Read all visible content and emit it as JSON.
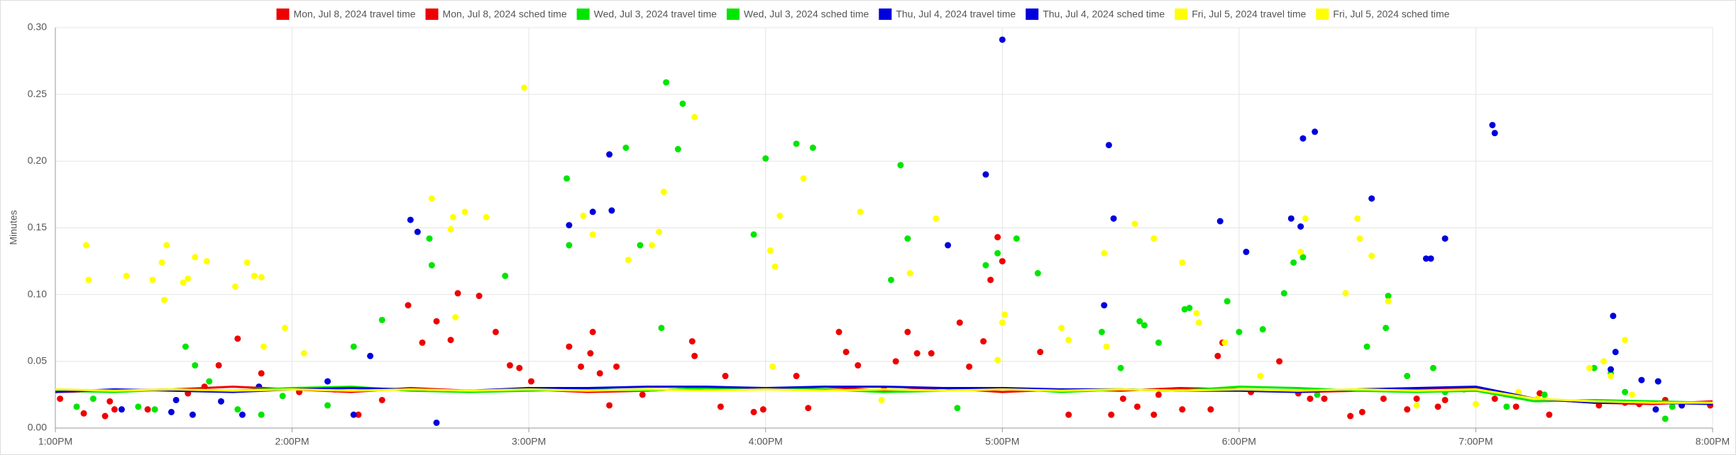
{
  "chart_data": {
    "type": "scatter",
    "y_label": "Minutes",
    "xlim": [
      13,
      20
    ],
    "xticks": [
      {
        "value": 13,
        "label": "1:00PM"
      },
      {
        "value": 14,
        "label": "2:00PM"
      },
      {
        "value": 15,
        "label": "3:00PM"
      },
      {
        "value": 16,
        "label": "4:00PM"
      },
      {
        "value": 17,
        "label": "5:00PM"
      },
      {
        "value": 18,
        "label": "6:00PM"
      },
      {
        "value": 19,
        "label": "7:00PM"
      },
      {
        "value": 20,
        "label": "8:00PM"
      }
    ],
    "ylim": [
      0,
      0.3
    ],
    "yticks": [
      {
        "value": 0,
        "label": "0.00"
      },
      0.05,
      {
        "value": 0.1,
        "label": "0.10"
      },
      0.15,
      {
        "value": 0.2,
        "label": "0.20"
      },
      0.25,
      {
        "value": 0.3,
        "label": "0.30"
      }
    ],
    "grid": true,
    "legend": "top",
    "series": [
      {
        "name": "Mon, Jul 8, 2024 travel time",
        "type": "scatter",
        "color": "#ee0000",
        "x": [
          13.02,
          13.12,
          13.21,
          13.23,
          13.25,
          13.39,
          13.56,
          13.63,
          13.69,
          13.77,
          13.87,
          14.03,
          14.18,
          14.28,
          14.38,
          14.49,
          14.55,
          14.61,
          14.67,
          14.7,
          14.79,
          14.86,
          14.92,
          14.96,
          15.01,
          15.17,
          15.22,
          15.26,
          15.27,
          15.3,
          15.34,
          15.37,
          15.48,
          15.69,
          15.7,
          15.81,
          15.83,
          15.95,
          15.99,
          16.13,
          16.18,
          16.31,
          16.34,
          16.39,
          16.5,
          16.55,
          16.6,
          16.64,
          16.7,
          16.82,
          16.86,
          16.92,
          16.95,
          16.98,
          17.0,
          17.16,
          17.28,
          17.46,
          17.51,
          17.57,
          17.64,
          17.66,
          17.76,
          17.88,
          17.91,
          17.93,
          18.05,
          18.17,
          18.25,
          18.3,
          18.36,
          18.47,
          18.52,
          18.61,
          18.71,
          18.75,
          18.84,
          18.87,
          19.08,
          19.17,
          19.27,
          19.31,
          19.52,
          19.63,
          19.69,
          19.8,
          19.87,
          19.99
        ],
        "values": [
          0.022,
          0.011,
          0.009,
          0.02,
          0.014,
          0.014,
          0.026,
          0.031,
          0.047,
          0.067,
          0.041,
          0.027,
          0.029,
          0.01,
          0.021,
          0.092,
          0.064,
          0.08,
          0.066,
          0.101,
          0.099,
          0.072,
          0.047,
          0.045,
          0.035,
          0.061,
          0.046,
          0.056,
          0.072,
          0.041,
          0.017,
          0.046,
          0.025,
          0.065,
          0.054,
          0.016,
          0.039,
          0.012,
          0.014,
          0.039,
          0.015,
          0.072,
          0.057,
          0.047,
          0.029,
          0.05,
          0.072,
          0.056,
          0.056,
          0.079,
          0.046,
          0.065,
          0.111,
          0.143,
          0.125,
          0.057,
          0.01,
          0.01,
          0.022,
          0.016,
          0.01,
          0.025,
          0.014,
          0.014,
          0.054,
          0.064,
          0.027,
          0.05,
          0.026,
          0.022,
          0.022,
          0.009,
          0.012,
          0.022,
          0.014,
          0.022,
          0.016,
          0.021,
          0.022,
          0.016,
          0.026,
          0.01,
          0.017,
          0.019,
          0.018,
          0.021,
          0.017,
          0.017
        ]
      },
      {
        "name": "Mon, Jul 8, 2024 sched time",
        "type": "line",
        "color": "#ee0000",
        "x": [
          13,
          13.25,
          13.5,
          13.75,
          14,
          14.25,
          14.5,
          14.75,
          15,
          15.25,
          15.5,
          15.75,
          16,
          16.25,
          16.5,
          16.75,
          17,
          17.25,
          17.5,
          17.75,
          18,
          18.25,
          18.5,
          18.75,
          19,
          19.25,
          19.5,
          19.75,
          20
        ],
        "values": [
          0.027,
          0.028,
          0.029,
          0.031,
          0.029,
          0.027,
          0.03,
          0.028,
          0.029,
          0.027,
          0.028,
          0.03,
          0.029,
          0.031,
          0.028,
          0.03,
          0.027,
          0.029,
          0.028,
          0.03,
          0.029,
          0.027,
          0.028,
          0.029,
          0.03,
          0.022,
          0.019,
          0.018,
          0.02
        ]
      },
      {
        "name": "Wed, Jul 3, 2024 travel time",
        "type": "scatter",
        "color": "#00e600",
        "x": [
          13.09,
          13.16,
          13.35,
          13.42,
          13.55,
          13.59,
          13.65,
          13.77,
          13.87,
          13.96,
          14.15,
          14.26,
          14.38,
          14.58,
          14.59,
          14.9,
          15.16,
          15.17,
          15.41,
          15.47,
          15.56,
          15.58,
          15.63,
          15.65,
          15.95,
          16.0,
          16.13,
          16.2,
          16.53,
          16.57,
          16.6,
          16.81,
          16.93,
          16.98,
          17.06,
          17.15,
          17.42,
          17.5,
          17.58,
          17.6,
          17.66,
          17.77,
          17.79,
          17.95,
          18.0,
          18.1,
          18.19,
          18.23,
          18.27,
          18.33,
          18.54,
          18.62,
          18.63,
          18.71,
          18.82,
          18.87,
          18.95,
          19.13,
          19.29,
          19.5,
          19.57,
          19.63,
          19.77,
          19.8,
          19.83
        ],
        "values": [
          0.016,
          0.022,
          0.016,
          0.014,
          0.061,
          0.047,
          0.035,
          0.014,
          0.01,
          0.024,
          0.017,
          0.061,
          0.081,
          0.142,
          0.122,
          0.114,
          0.187,
          0.137,
          0.21,
          0.137,
          0.075,
          0.259,
          0.209,
          0.243,
          0.145,
          0.202,
          0.213,
          0.21,
          0.111,
          0.197,
          0.142,
          0.015,
          0.122,
          0.131,
          0.142,
          0.116,
          0.072,
          0.045,
          0.08,
          0.077,
          0.064,
          0.089,
          0.09,
          0.095,
          0.072,
          0.074,
          0.101,
          0.124,
          0.128,
          0.025,
          0.061,
          0.075,
          0.099,
          0.039,
          0.045,
          0.027,
          0.029,
          0.016,
          0.025,
          0.045,
          0.041,
          0.027,
          0.035,
          0.007,
          0.016
        ]
      },
      {
        "name": "Wed, Jul 3, 2024 sched time",
        "type": "line",
        "color": "#00e600",
        "x": [
          13,
          13.25,
          13.5,
          13.75,
          14,
          14.25,
          14.5,
          14.75,
          15,
          15.25,
          15.5,
          15.75,
          16,
          16.25,
          16.5,
          16.75,
          17,
          17.25,
          17.5,
          17.75,
          18,
          18.25,
          18.5,
          18.75,
          19,
          19.25,
          19.5,
          19.75,
          20
        ],
        "values": [
          0.028,
          0.027,
          0.029,
          0.028,
          0.03,
          0.031,
          0.028,
          0.027,
          0.028,
          0.029,
          0.028,
          0.03,
          0.029,
          0.029,
          0.027,
          0.028,
          0.03,
          0.027,
          0.029,
          0.028,
          0.031,
          0.03,
          0.028,
          0.027,
          0.028,
          0.02,
          0.021,
          0.02,
          0.019
        ]
      },
      {
        "name": "Thu, Jul 4, 2024 travel time",
        "type": "scatter",
        "color": "#0000dd",
        "x": [
          13.28,
          13.49,
          13.51,
          13.58,
          13.7,
          13.79,
          13.86,
          14.15,
          14.26,
          14.33,
          14.5,
          14.53,
          14.61,
          15.17,
          15.27,
          15.34,
          15.35,
          16.77,
          16.93,
          17.0,
          17.43,
          17.45,
          17.47,
          17.92,
          18.03,
          18.22,
          18.26,
          18.27,
          18.32,
          18.56,
          18.79,
          18.81,
          18.87,
          19.07,
          19.08,
          19.58,
          19.59,
          19.57,
          19.7,
          19.77,
          19.87,
          19.76
        ],
        "values": [
          0.014,
          0.012,
          0.021,
          0.01,
          0.02,
          0.01,
          0.031,
          0.035,
          0.01,
          0.054,
          0.156,
          0.147,
          0.004,
          0.152,
          0.162,
          0.205,
          0.163,
          0.137,
          0.19,
          0.291,
          0.092,
          0.212,
          0.157,
          0.155,
          0.132,
          0.157,
          0.151,
          0.217,
          0.222,
          0.172,
          0.127,
          0.127,
          0.142,
          0.227,
          0.221,
          0.084,
          0.057,
          0.044,
          0.036,
          0.035,
          0.017,
          0.014
        ]
      },
      {
        "name": "Thu, Jul 4, 2024 sched time",
        "type": "line",
        "color": "#0000dd",
        "x": [
          13,
          13.25,
          13.5,
          13.75,
          14,
          14.25,
          14.5,
          14.75,
          15,
          15.25,
          15.5,
          15.75,
          16,
          16.25,
          16.5,
          16.75,
          17,
          17.25,
          17.5,
          17.75,
          18,
          18.25,
          18.5,
          18.75,
          19,
          19.25,
          19.5,
          19.75,
          20
        ],
        "values": [
          0.027,
          0.029,
          0.028,
          0.027,
          0.029,
          0.03,
          0.029,
          0.028,
          0.03,
          0.03,
          0.031,
          0.031,
          0.03,
          0.031,
          0.031,
          0.03,
          0.03,
          0.029,
          0.029,
          0.028,
          0.028,
          0.027,
          0.029,
          0.03,
          0.031,
          0.022,
          0.019,
          0.019,
          0.018
        ]
      },
      {
        "name": "Fri, Jul 5, 2024 travel time",
        "type": "scatter",
        "color": "#ffff00",
        "x": [
          13.13,
          13.14,
          13.3,
          13.41,
          13.45,
          13.46,
          13.47,
          13.54,
          13.56,
          13.59,
          13.64,
          13.76,
          13.81,
          13.84,
          13.87,
          13.88,
          13.97,
          14.05,
          14.59,
          14.67,
          14.68,
          14.69,
          14.73,
          14.82,
          14.98,
          15.23,
          15.27,
          15.42,
          15.52,
          15.55,
          15.57,
          15.7,
          16.02,
          16.04,
          16.03,
          16.06,
          16.16,
          16.4,
          16.49,
          16.61,
          16.72,
          16.98,
          17.0,
          17.01,
          17.25,
          17.28,
          17.43,
          17.44,
          17.56,
          17.64,
          17.76,
          17.82,
          17.83,
          17.94,
          18.09,
          18.26,
          18.28,
          18.45,
          18.5,
          18.51,
          18.56,
          18.63,
          18.75,
          19.0,
          19.18,
          19.26,
          19.48,
          19.54,
          19.57,
          19.63,
          19.66
        ],
        "values": [
          0.137,
          0.111,
          0.114,
          0.111,
          0.124,
          0.096,
          0.137,
          0.109,
          0.112,
          0.128,
          0.125,
          0.106,
          0.124,
          0.114,
          0.113,
          0.061,
          0.075,
          0.056,
          0.172,
          0.149,
          0.158,
          0.083,
          0.162,
          0.158,
          0.255,
          0.159,
          0.145,
          0.126,
          0.137,
          0.147,
          0.177,
          0.233,
          0.133,
          0.121,
          0.046,
          0.159,
          0.187,
          0.162,
          0.021,
          0.116,
          0.157,
          0.051,
          0.079,
          0.085,
          0.075,
          0.066,
          0.131,
          0.061,
          0.153,
          0.142,
          0.124,
          0.086,
          0.079,
          0.064,
          0.039,
          0.132,
          0.157,
          0.101,
          0.157,
          0.142,
          0.129,
          0.095,
          0.017,
          0.018,
          0.027,
          0.022,
          0.045,
          0.05,
          0.039,
          0.066,
          0.025
        ]
      },
      {
        "name": "Fri, Jul 5, 2024 sched time",
        "type": "line",
        "color": "#ffff00",
        "x": [
          13,
          13.25,
          13.5,
          13.75,
          14,
          14.25,
          14.5,
          14.75,
          15,
          15.25,
          15.5,
          15.75,
          16,
          16.25,
          16.5,
          16.75,
          17,
          17.25,
          17.5,
          17.75,
          18,
          18.25,
          18.5,
          18.75,
          19,
          19.25,
          19.5,
          19.75,
          20
        ],
        "values": [
          0.029,
          0.028,
          0.029,
          0.028,
          0.029,
          0.028,
          0.029,
          0.028,
          0.029,
          0.028,
          0.029,
          0.028,
          0.029,
          0.028,
          0.029,
          0.028,
          0.029,
          0.028,
          0.029,
          0.028,
          0.029,
          0.028,
          0.029,
          0.028,
          0.029,
          0.022,
          0.02,
          0.019,
          0.019
        ]
      }
    ]
  }
}
